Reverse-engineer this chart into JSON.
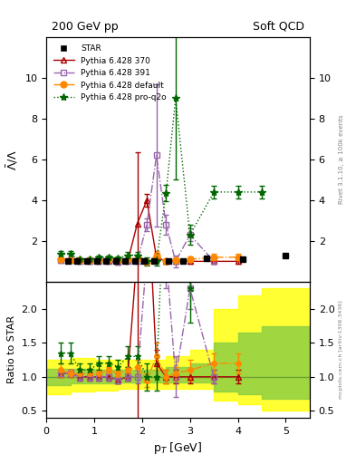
{
  "title_left": "200 GeV pp",
  "title_right": "Soft QCD",
  "ylabel_main": "$\\bar{\\Lambda}/\\Lambda$",
  "ylabel_ratio": "Ratio to STAR",
  "xlabel": "p$_T$ [GeV]",
  "right_label": "Rivet 3.1.10, ≥ 100k events",
  "right_label2": "mcplots.cern.ch [arXiv:1306.3436]",
  "xlim": [
    0,
    5.5
  ],
  "ylim_main": [
    0,
    12
  ],
  "ylim_ratio": [
    0.4,
    2.4
  ],
  "yticks_main": [
    2,
    4,
    6,
    8,
    10
  ],
  "yticks_ratio": [
    0.5,
    1.0,
    1.5,
    2.0
  ],
  "star_x": [
    0.45,
    0.65,
    0.85,
    1.05,
    1.25,
    1.45,
    1.65,
    1.85,
    2.05,
    2.25,
    2.55,
    2.85,
    3.35,
    4.1,
    5.0
  ],
  "star_y": [
    1.0,
    1.0,
    1.0,
    1.0,
    1.0,
    1.0,
    1.0,
    1.0,
    1.0,
    1.0,
    1.0,
    1.0,
    1.15,
    1.1,
    1.3
  ],
  "star_color": "#000000",
  "p370_x": [
    0.3,
    0.5,
    0.7,
    0.9,
    1.1,
    1.3,
    1.5,
    1.7,
    1.9,
    2.1,
    2.3,
    2.5,
    2.7,
    3.0,
    3.5,
    4.0
  ],
  "p370_y": [
    1.05,
    1.05,
    1.0,
    1.0,
    1.0,
    1.0,
    0.95,
    1.0,
    2.85,
    4.0,
    1.2,
    1.0,
    1.0,
    1.0,
    1.0,
    1.0
  ],
  "p370_yerr": [
    0.05,
    0.05,
    0.05,
    0.05,
    0.05,
    0.05,
    0.05,
    0.05,
    3.5,
    0.3,
    0.2,
    0.1,
    0.1,
    0.1,
    0.1,
    0.1
  ],
  "p370_color": "#aa0000",
  "p391_x": [
    0.3,
    0.5,
    0.7,
    0.9,
    1.1,
    1.3,
    1.5,
    1.7,
    1.9,
    2.1,
    2.3,
    2.5,
    2.7,
    3.0,
    3.5
  ],
  "p391_y": [
    1.05,
    1.05,
    1.0,
    1.0,
    1.0,
    1.0,
    0.95,
    1.0,
    1.0,
    2.8,
    6.2,
    2.8,
    1.0,
    2.3,
    1.0
  ],
  "p391_yerr": [
    0.05,
    0.05,
    0.05,
    0.05,
    0.05,
    0.05,
    0.05,
    0.05,
    0.1,
    0.3,
    3.5,
    0.5,
    0.3,
    0.3,
    0.1
  ],
  "p391_color": "#9966aa",
  "pdef_x": [
    0.3,
    0.5,
    0.7,
    0.9,
    1.1,
    1.3,
    1.5,
    1.7,
    1.9,
    2.1,
    2.3,
    2.5,
    2.7,
    3.0,
    3.5,
    4.0
  ],
  "pdef_y": [
    1.1,
    1.05,
    1.05,
    1.05,
    1.05,
    1.1,
    1.05,
    1.1,
    1.15,
    0.95,
    1.3,
    1.0,
    1.05,
    1.1,
    1.2,
    1.2
  ],
  "pdef_yerr": [
    0.1,
    0.05,
    0.05,
    0.05,
    0.05,
    0.05,
    0.05,
    0.05,
    0.1,
    0.1,
    0.2,
    0.1,
    0.1,
    0.15,
    0.15,
    0.15
  ],
  "pdef_color": "#ff8800",
  "pq2o_x": [
    0.3,
    0.5,
    0.7,
    0.9,
    1.1,
    1.3,
    1.5,
    1.7,
    1.9,
    2.1,
    2.3,
    2.5,
    2.7,
    3.0,
    3.5,
    4.0,
    4.5
  ],
  "pq2o_y": [
    1.35,
    1.35,
    1.1,
    1.1,
    1.2,
    1.2,
    1.15,
    1.3,
    1.3,
    1.0,
    1.0,
    4.35,
    9.0,
    2.3,
    4.4,
    4.4,
    4.4
  ],
  "pq2o_yerr": [
    0.15,
    0.15,
    0.1,
    0.1,
    0.1,
    0.1,
    0.1,
    0.15,
    0.15,
    0.2,
    0.2,
    0.4,
    4.0,
    0.5,
    0.3,
    0.3,
    0.3
  ],
  "pq2o_color": "#006600",
  "band_yellow_x": [
    0.0,
    0.5,
    1.0,
    1.5,
    2.0,
    2.5,
    3.0,
    3.5,
    4.0,
    4.5,
    5.5
  ],
  "band_yellow_lo": [
    0.75,
    0.78,
    0.8,
    0.82,
    0.82,
    0.82,
    0.82,
    0.65,
    0.6,
    0.5,
    0.5
  ],
  "band_yellow_hi": [
    1.25,
    1.28,
    1.25,
    1.25,
    1.25,
    1.3,
    1.4,
    2.0,
    2.2,
    2.3,
    2.3
  ],
  "band_green_x": [
    0.0,
    0.5,
    1.0,
    1.5,
    2.0,
    2.5,
    3.0,
    3.5,
    4.0,
    4.5,
    5.5
  ],
  "band_green_lo": [
    0.88,
    0.9,
    0.9,
    0.92,
    0.92,
    0.92,
    0.92,
    0.78,
    0.75,
    0.68,
    0.68
  ],
  "band_green_hi": [
    1.12,
    1.12,
    1.1,
    1.1,
    1.1,
    1.15,
    1.2,
    1.5,
    1.65,
    1.75,
    1.75
  ]
}
